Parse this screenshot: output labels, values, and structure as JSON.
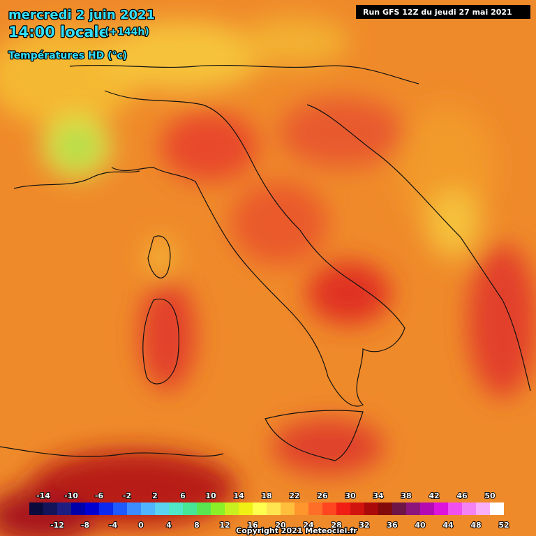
{
  "header": {
    "date": "mercredi 2 juin 2021",
    "time": "14:00 locale",
    "lead": "(+144h)",
    "parameter": "Températures HD (°c)",
    "run": "Run GFS 12Z du jeudi 27 mai 2021"
  },
  "legend": {
    "top_labels": [
      -14,
      -10,
      -6,
      -2,
      2,
      6,
      10,
      14,
      18,
      22,
      26,
      30,
      34,
      38,
      42,
      46,
      50
    ],
    "bottom_labels": [
      -12,
      -8,
      -4,
      0,
      4,
      8,
      12,
      16,
      20,
      24,
      28,
      32,
      36,
      40,
      44,
      48,
      52
    ]
  },
  "footer": {
    "copyright": "Copyright 2021 Meteociel.fr"
  }
}
